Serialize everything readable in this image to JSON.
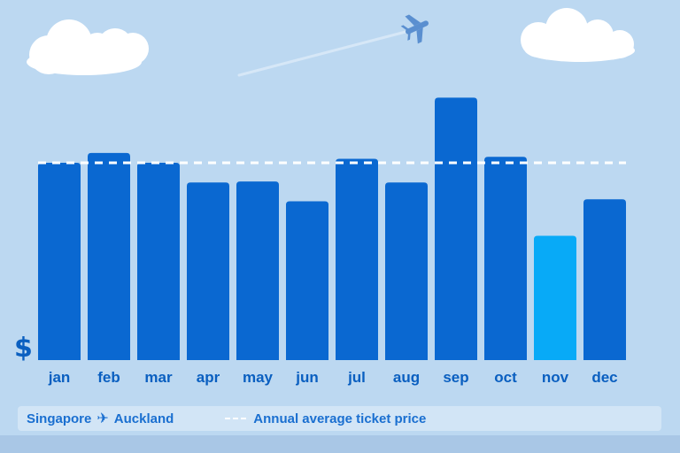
{
  "currency_symbol": "$",
  "legend": {
    "origin": "Singapore",
    "destination": "Auckland",
    "average_label": "Annual average ticket price"
  },
  "colors": {
    "bar": "#0a68d1",
    "highlight_bar": "#08aaf7",
    "average_line": "#ffffff",
    "tick_label": "#0a5fc0",
    "background": "#bcd8f1"
  },
  "icons": [
    "plane-icon",
    "cloud-icon",
    "dollar-sign"
  ],
  "chart_data": {
    "type": "bar",
    "categories": [
      "jan",
      "feb",
      "mar",
      "apr",
      "may",
      "jun",
      "jul",
      "aug",
      "sep",
      "oct",
      "nov",
      "dec"
    ],
    "values": [
      100,
      105,
      100,
      90,
      90.5,
      80.5,
      102,
      90,
      133,
      103,
      63,
      81.5
    ],
    "average": 100,
    "highlight": "nov",
    "ylim": [
      0,
      150
    ],
    "title": "",
    "xlabel": "",
    "ylabel": "$",
    "grid": false,
    "legend_position": "bottom"
  }
}
